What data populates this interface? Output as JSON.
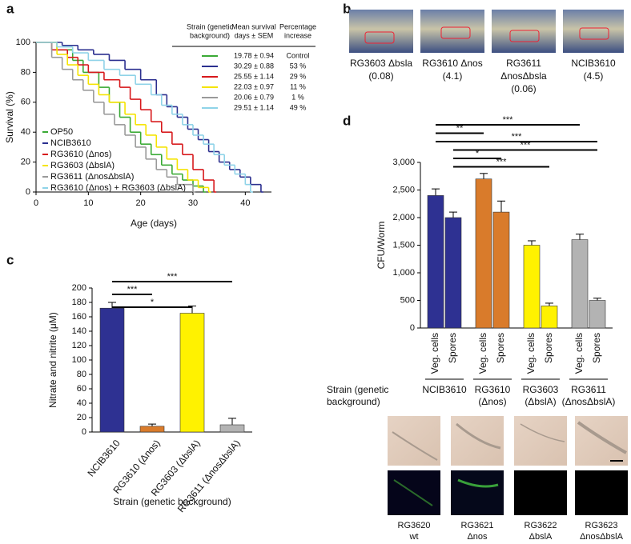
{
  "panel_labels": [
    "a",
    "b",
    "c",
    "d"
  ],
  "panel_b_photos": [
    [
      "RG3603 Δbsla",
      "(0.08)"
    ],
    [
      "RG3610 Δnos",
      "(4.1)"
    ],
    [
      "RG3611",
      "ΔnosΔbsla",
      "(0.06)"
    ],
    [
      "NCIB3610",
      "(4.5)"
    ]
  ],
  "panel_d_photos": [
    [
      "RG3620",
      "wt"
    ],
    [
      "RG3621",
      "Δnos"
    ],
    [
      "RG3622",
      "ΔbslA"
    ],
    [
      "RG3623",
      "ΔnosΔbslA"
    ]
  ],
  "chart_data": [
    {
      "type": "line",
      "step": true,
      "xlabel": "Age (days)",
      "ylabel": "Survival (%)",
      "xlim": [
        0,
        45
      ],
      "ylim": [
        0,
        100
      ],
      "xticks": [
        0,
        10,
        20,
        30,
        40
      ],
      "yticks": [
        0,
        20,
        40,
        60,
        80,
        100
      ],
      "legend": "lower left",
      "series": [
        {
          "name": "OP50",
          "color": "#3aaa35",
          "x": [
            0,
            4,
            7,
            9,
            12,
            14,
            16,
            18,
            20,
            22,
            24,
            26,
            28,
            30,
            32
          ],
          "values": [
            100,
            95,
            88,
            80,
            70,
            60,
            50,
            40,
            32,
            25,
            18,
            12,
            8,
            4,
            0
          ]
        },
        {
          "name": "NCIB3610",
          "color": "#2b2f8f",
          "x": [
            0,
            5,
            8,
            11,
            14,
            17,
            20,
            23,
            25,
            27,
            29,
            31,
            33,
            35,
            37,
            39,
            41,
            43
          ],
          "values": [
            100,
            98,
            95,
            92,
            88,
            82,
            75,
            65,
            57,
            50,
            42,
            35,
            27,
            20,
            15,
            10,
            5,
            0
          ]
        },
        {
          "name": "RG3610 (Δnos)",
          "color": "#d7191c",
          "x": [
            0,
            3,
            6,
            8,
            10,
            13,
            16,
            18,
            20,
            22,
            24,
            26,
            28,
            30,
            32,
            34
          ],
          "values": [
            100,
            95,
            90,
            85,
            80,
            75,
            70,
            62,
            55,
            47,
            40,
            32,
            25,
            15,
            8,
            0
          ]
        },
        {
          "name": "RG3603 (ΔbslA)",
          "color": "#f5e400",
          "x": [
            0,
            4,
            6,
            8,
            10,
            12,
            14,
            17,
            19,
            21,
            23,
            25,
            27,
            29,
            31,
            33
          ],
          "values": [
            100,
            92,
            85,
            78,
            72,
            65,
            60,
            52,
            45,
            38,
            30,
            22,
            15,
            8,
            3,
            0
          ]
        },
        {
          "name": "RG3611 (ΔnosΔbslA)",
          "color": "#9a9a9a",
          "x": [
            0,
            3,
            5,
            7,
            9,
            11,
            13,
            15,
            17,
            19,
            21,
            23,
            25,
            27,
            30
          ],
          "values": [
            100,
            90,
            82,
            75,
            68,
            60,
            52,
            45,
            38,
            30,
            22,
            15,
            10,
            5,
            0
          ]
        },
        {
          "name": "RG3610 (Δnos) + RG3603 (ΔbslA)",
          "color": "#8fd3e8",
          "x": [
            0,
            4,
            7,
            10,
            13,
            16,
            19,
            22,
            24,
            26,
            28,
            30,
            32,
            34,
            36,
            38,
            40,
            41
          ],
          "values": [
            100,
            97,
            93,
            88,
            82,
            78,
            72,
            65,
            58,
            52,
            45,
            38,
            32,
            25,
            18,
            12,
            5,
            0
          ]
        }
      ],
      "table": {
        "header": [
          [
            "Strain (genetic",
            "background)"
          ],
          [
            "Mean survival",
            "days ± SEM"
          ],
          [
            "Percentage",
            "increase"
          ]
        ],
        "rows": [
          [
            "19.78 ± 0.94",
            "Control"
          ],
          [
            "30.29 ± 0.88",
            "53 %"
          ],
          [
            "25.55 ± 1.14",
            "29 %"
          ],
          [
            "22.03 ± 0.97",
            "11 %"
          ],
          [
            "20.06 ± 0.79",
            "1 %"
          ],
          [
            "29.51 ± 1.14",
            "49 %"
          ]
        ]
      }
    },
    {
      "type": "bar",
      "ylabel": "Nitrate and nitrite (μM)",
      "xlabel": "Strain (genetic background)",
      "categories": [
        "NCIB3610",
        "RG3610 (Δnos)",
        "RG3603 (ΔbslA)",
        "RG3611 (ΔnosΔbslA)"
      ],
      "values": [
        172,
        8,
        165,
        10
      ],
      "errors": [
        8,
        3,
        10,
        9
      ],
      "colors": [
        "#2e3192",
        "#d97b2b",
        "#fff200",
        "#b3b3b3"
      ],
      "ylim": [
        0,
        200
      ],
      "yticks": [
        0,
        20,
        40,
        60,
        80,
        100,
        120,
        140,
        160,
        180,
        200
      ],
      "significance": [
        {
          "label": "***",
          "between": [
            0,
            3
          ]
        },
        {
          "label": "***",
          "between": [
            0,
            1
          ]
        },
        {
          "label": "*",
          "between": [
            0,
            2
          ]
        }
      ]
    },
    {
      "type": "bar",
      "ylabel": "CFU/Worm",
      "group_title": [
        "Strain (genetic",
        "background)"
      ],
      "categories": [
        "Veg. cells",
        "Spores",
        "Veg. cells",
        "Spores",
        "Veg. cells",
        "Spores",
        "Veg. cells",
        "Spores"
      ],
      "groups": [
        [
          "NCIB3610"
        ],
        [
          "RG3610",
          "(Δnos)"
        ],
        [
          "RG3603",
          "(ΔbslA)"
        ],
        [
          "RG3611",
          "(ΔnosΔbslA)"
        ]
      ],
      "values": [
        2400,
        2000,
        2700,
        2100,
        1500,
        400,
        1600,
        500
      ],
      "errors": [
        120,
        100,
        100,
        200,
        80,
        50,
        100,
        40
      ],
      "colors": [
        "#2e3192",
        "#2e3192",
        "#d97b2b",
        "#d97b2b",
        "#fff200",
        "#fff200",
        "#b3b3b3",
        "#b3b3b3"
      ],
      "ylim": [
        0,
        3000
      ],
      "yticks": [
        0,
        {
          "value": 500,
          "label": "500"
        },
        {
          "value": 1000,
          "label": "1,000"
        },
        {
          "value": 1500,
          "label": "1,500"
        },
        {
          "value": 2000,
          "label": "2,000"
        },
        {
          "value": 2500,
          "label": "2,500"
        },
        {
          "value": 3000,
          "label": "3,000"
        }
      ],
      "significance": [
        {
          "label": "***",
          "between": [
            0,
            6
          ]
        },
        {
          "label": "**",
          "between": [
            0,
            2
          ]
        },
        {
          "label": "***",
          "between": [
            0,
            7
          ]
        },
        {
          "label": "***",
          "between": [
            1,
            7
          ]
        },
        {
          "label": "*",
          "between": [
            1,
            3
          ]
        },
        {
          "label": "***",
          "between": [
            1,
            5
          ]
        }
      ]
    }
  ]
}
